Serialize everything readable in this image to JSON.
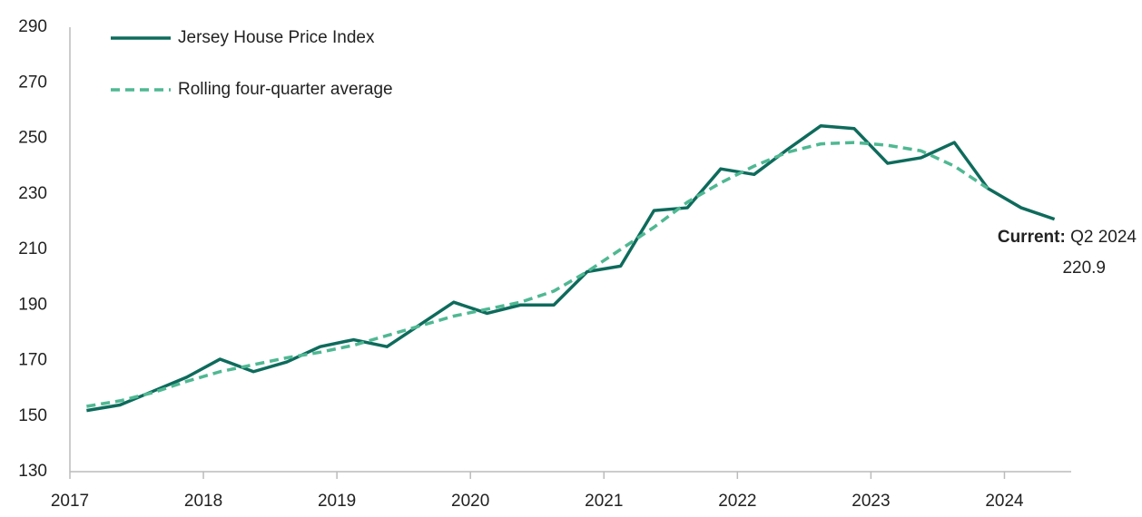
{
  "chart_data": {
    "type": "line",
    "x": [
      2017.125,
      2017.375,
      2017.625,
      2017.875,
      2018.125,
      2018.375,
      2018.625,
      2018.875,
      2019.125,
      2019.375,
      2019.625,
      2019.875,
      2020.125,
      2020.375,
      2020.625,
      2020.875,
      2021.125,
      2021.375,
      2021.625,
      2021.875,
      2022.125,
      2022.375,
      2022.625,
      2022.875,
      2023.125,
      2023.375,
      2023.625,
      2023.875,
      2024.125,
      2024.375
    ],
    "series": [
      {
        "name": "Jersey House Price Index",
        "color": "#0e6b5c",
        "dashed": false,
        "values": [
          152,
          154,
          159,
          164,
          170.5,
          166,
          169.5,
          175,
          177.5,
          175,
          183,
          191,
          187,
          190,
          190,
          202,
          204,
          224,
          225,
          239,
          237,
          246,
          254.5,
          253.5,
          241,
          243,
          248.5,
          232,
          225,
          220.9
        ]
      },
      {
        "name": "Rolling four-quarter average",
        "color": "#4fb893",
        "dashed": true,
        "values": [
          153.5,
          155.5,
          158.5,
          162.5,
          166,
          168.5,
          171,
          173,
          175.5,
          179,
          182.5,
          186,
          188.5,
          191,
          195,
          202,
          210,
          218,
          227,
          234,
          240,
          245,
          248,
          248.5,
          247.5,
          245.5,
          240,
          232,
          null,
          null
        ]
      }
    ],
    "xlim": [
      2017,
      2024.5
    ],
    "xticks": [
      2017,
      2018,
      2019,
      2020,
      2021,
      2022,
      2023,
      2024
    ],
    "ylim": [
      130,
      290
    ],
    "yticks": [
      130,
      150,
      170,
      190,
      210,
      230,
      250,
      270,
      290
    ],
    "legend": "top-left",
    "annotation": {
      "label": "Current:",
      "period": "Q2 2024",
      "value": 220.9
    }
  }
}
